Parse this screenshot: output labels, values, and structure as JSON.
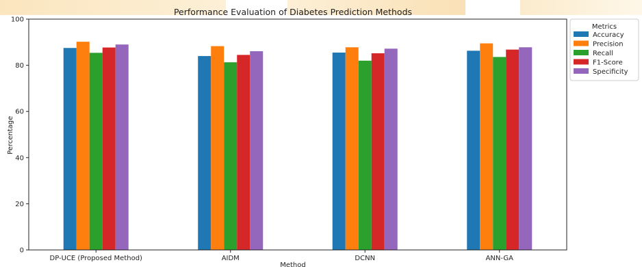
{
  "chart_data": {
    "type": "bar",
    "title": "Performance Evaluation of Diabetes Prediction Methods",
    "xlabel": "Method",
    "ylabel": "Percentage",
    "ylim": [
      0,
      100
    ],
    "yticks": [
      0,
      20,
      40,
      60,
      80,
      100
    ],
    "categories": [
      "DP-UCE (Proposed Method)",
      "AIDM",
      "DCNN",
      "ANN-GA"
    ],
    "legend_title": "Metrics",
    "legend_position": "outside-top-right",
    "grid": false,
    "series": [
      {
        "name": "Accuracy",
        "color": "#1f77b4",
        "values": [
          87.5,
          84.0,
          85.5,
          86.3
        ]
      },
      {
        "name": "Precision",
        "color": "#ff7f0e",
        "values": [
          90.2,
          88.3,
          87.8,
          89.5
        ]
      },
      {
        "name": "Recall",
        "color": "#2ca02c",
        "values": [
          85.4,
          81.3,
          82.0,
          83.6
        ]
      },
      {
        "name": "F1-Score",
        "color": "#d62728",
        "values": [
          87.7,
          84.5,
          85.2,
          86.8
        ]
      },
      {
        "name": "Specificity",
        "color": "#9467bd",
        "values": [
          89.0,
          86.1,
          87.2,
          87.8
        ]
      }
    ]
  }
}
